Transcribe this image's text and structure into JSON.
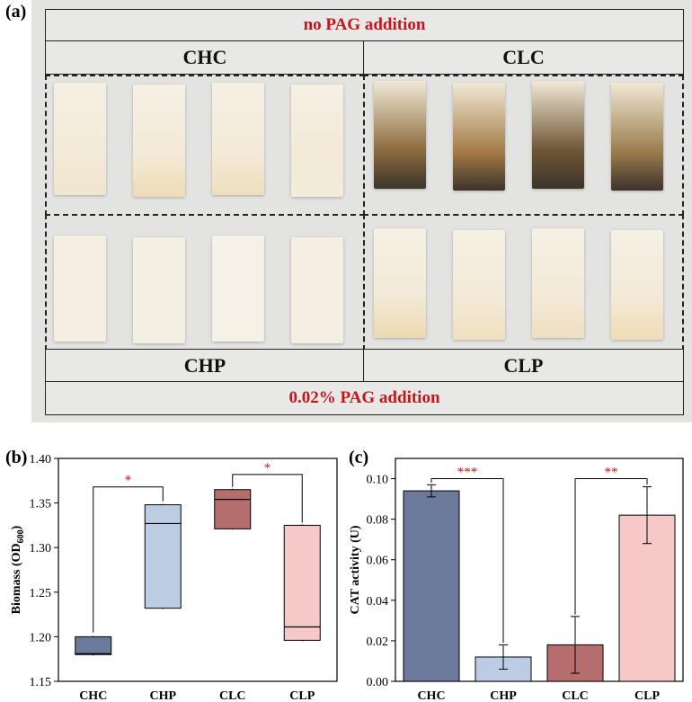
{
  "panel_a": {
    "letter": "(a)",
    "top_label": "no PAG addition",
    "bottom_label": "0.02% PAG addition",
    "groups": [
      "CHC",
      "CLC",
      "CHP",
      "CLP"
    ],
    "strip_colors": {
      "CHC": [
        "#f0e6cf",
        "#eedcb6",
        "#eedfbd",
        "#f3ecdb"
      ],
      "CLC": [
        "#8a6a3c",
        "#a37a45",
        "#6e5434",
        "#9a7a4c"
      ],
      "CHP": [
        "#f4efe2",
        "#f3efe3",
        "#f5f1e6",
        "#f4efe2"
      ],
      "CLP": [
        "#ecd9b1",
        "#efe0c0",
        "#eedfc0",
        "#efdcb6"
      ]
    }
  },
  "chart_data": [
    {
      "panel": "(b)",
      "type": "box",
      "ylabel": "Biomass (OD",
      "ylabel_sub": "600",
      "ylabel_end": ")",
      "categories": [
        "CHC",
        "CHP",
        "CLC",
        "CLP"
      ],
      "colors": [
        "#6b7a9b",
        "#bccde3",
        "#b56d6d",
        "#f6c8c8"
      ],
      "boxes": [
        {
          "q1": 1.18,
          "median": 1.181,
          "q3": 1.2,
          "min": 1.179,
          "max": 1.201
        },
        {
          "q1": 1.232,
          "median": 1.327,
          "q3": 1.348,
          "min": 1.231,
          "max": 1.349
        },
        {
          "q1": 1.321,
          "median": 1.354,
          "q3": 1.365,
          "min": 1.32,
          "max": 1.366
        },
        {
          "q1": 1.196,
          "median": 1.211,
          "q3": 1.325,
          "min": 1.195,
          "max": 1.326
        }
      ],
      "ylim": [
        1.15,
        1.4
      ],
      "yticks": [
        "1.15",
        "1.20",
        "1.25",
        "1.30",
        "1.35",
        "1.40"
      ],
      "significance": [
        {
          "from": 0,
          "to": 1,
          "label": "*",
          "y": 1.368,
          "left_drop": 1.205,
          "right_drop": 1.352
        },
        {
          "from": 2,
          "to": 3,
          "label": "*",
          "y": 1.382,
          "left_drop": 1.368,
          "right_drop": 1.328
        }
      ]
    },
    {
      "panel": "(c)",
      "type": "bar",
      "ylabel": "CAT activity (U)",
      "categories": [
        "CHC",
        "CHP",
        "CLC",
        "CLP"
      ],
      "values": [
        0.094,
        0.012,
        0.018,
        0.082
      ],
      "errors": [
        0.003,
        0.006,
        0.014,
        0.014
      ],
      "colors": [
        "#6b7a9b",
        "#bccde3",
        "#b56d6d",
        "#f6c8c8"
      ],
      "ylim": [
        0,
        0.11
      ],
      "yticks": [
        "0.00",
        "0.02",
        "0.04",
        "0.06",
        "0.08",
        "0.10"
      ],
      "significance": [
        {
          "from": 0,
          "to": 1,
          "label": "***",
          "y": 0.1,
          "left_drop": 0.098,
          "right_drop": 0.019
        },
        {
          "from": 2,
          "to": 3,
          "label": "**",
          "y": 0.1,
          "left_drop": 0.033,
          "right_drop": 0.097
        }
      ]
    }
  ]
}
